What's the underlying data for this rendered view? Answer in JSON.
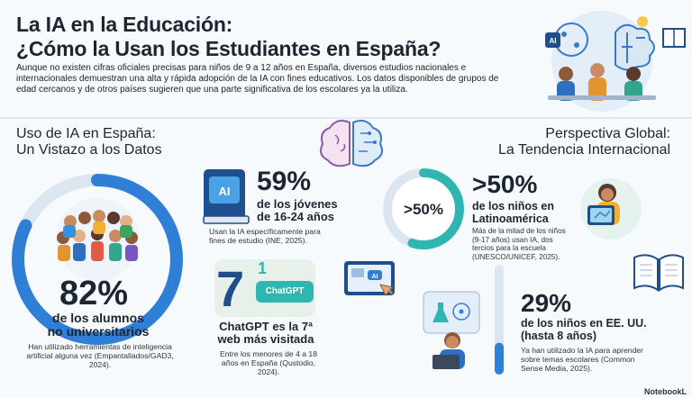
{
  "header": {
    "title_line1": "La IA en la Educación:",
    "title_line2": "¿Cómo la Usan los Estudiantes en España?",
    "intro": "Aunque no existen cifras oficiales precisas para niños de 9 a 12 años en España, diversos estudios nacionales e internacionales demuestran una alta y rápida adopción de la IA con fines educativos. Los datos disponibles de grupos de edad cercanos y de otros países sugieren que una parte significativa de los escolares ya la utiliza."
  },
  "left_section": {
    "title_line1": "Uso de IA en España:",
    "title_line2": "Un Vistazo a los Datos",
    "stat_main": {
      "value": "82%",
      "fraction": 0.82,
      "label_line1": "de los alumnos",
      "label_line2": "no universitarios",
      "desc": "Han utilizado herramientas de inteligencia artificial alguna vez (Empantallados/GAD3, 2024)."
    },
    "stat_youth": {
      "value": "59%",
      "label_line1": "de los jóvenes",
      "label_line2": "de 16-24 años",
      "desc": "Usan la IA específicamente para fines de estudio (INE, 2025).",
      "chip": "AI"
    },
    "stat_chatgpt": {
      "rank": "7",
      "rank_small": "1",
      "chip": "ChatGPT",
      "label_line1": "ChatGPT es la 7ª",
      "label_line2": "web más visitada",
      "desc": "Entre los menores de 4 a 18 años en España (Qustodio, 2024)."
    }
  },
  "right_section": {
    "title_line1": "Perspectiva Global:",
    "title_line2": "La Tendencia Internacional",
    "stat_latam": {
      "ring_value": ">50%",
      "value": ">50%",
      "fraction": 0.55,
      "label_line1": "de los niños en",
      "label_line2": "Latinoamérica",
      "desc": "Más de la mitad de los niños (9-17 años) usan IA, dos tercios para la escuela (UNESCO/UNICEF, 2025)."
    },
    "stat_usa": {
      "value": "29%",
      "fraction": 0.29,
      "label_line1": "de los niños en EE. UU.",
      "label_line2": "(hasta 8 años)",
      "desc": "Ya han utilizado la IA para aprender sobre temas escolares (Common Sense Media, 2025)."
    }
  },
  "decor": {
    "tablet_chip": "AI",
    "laptop_chip": "AI"
  },
  "footer": {
    "brand": "NotebookL"
  },
  "colors": {
    "ring_blue": "#2f7fd6",
    "ring_teal": "#2fb6b0",
    "navy": "#1e4e8c"
  }
}
